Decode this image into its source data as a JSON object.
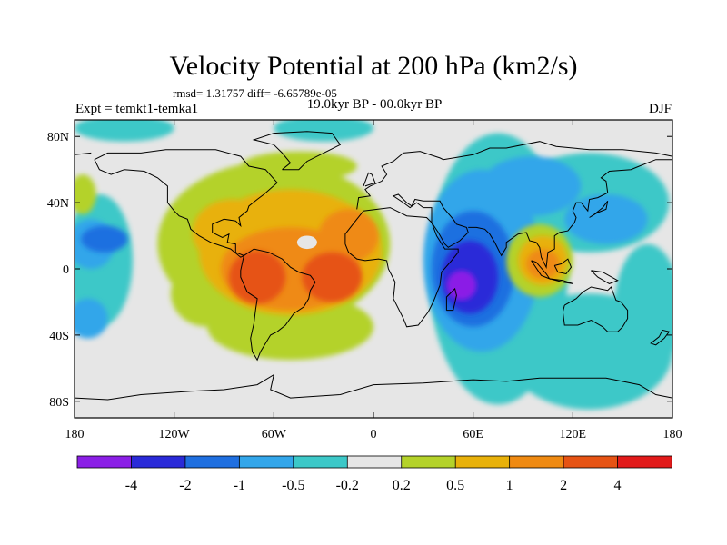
{
  "title": "Velocity Potential at 200 hPa (km2/s)",
  "subtitle_left": "Expt = temkt1-temka1",
  "subtitle_stats": "rmsd= 1.31757 diff= -6.65789e-05",
  "subtitle_center": "19.0kyr BP - 00.0kyr BP",
  "subtitle_right": "DJF",
  "map": {
    "projection": "cylindrical equidistant",
    "lon_range": [
      -180,
      180
    ],
    "lat_range": [
      -90,
      90
    ],
    "lon_ticks": [
      {
        "lon": -180,
        "label": "180"
      },
      {
        "lon": -120,
        "label": "120W"
      },
      {
        "lon": -60,
        "label": "60W"
      },
      {
        "lon": 0,
        "label": "0"
      },
      {
        "lon": 60,
        "label": "60E"
      },
      {
        "lon": 120,
        "label": "120E"
      },
      {
        "lon": 180,
        "label": "180"
      }
    ],
    "lat_ticks": [
      {
        "lat": 80,
        "label": "80N"
      },
      {
        "lat": 40,
        "label": "40N"
      },
      {
        "lat": 0,
        "label": "0"
      },
      {
        "lat": -40,
        "label": "40S"
      },
      {
        "lat": -80,
        "label": "80S"
      }
    ],
    "background_color": "#e6e6e6"
  },
  "colorbar": {
    "colors": [
      "#8b1fe6",
      "#2a2ad8",
      "#1f6fe0",
      "#33a6ea",
      "#3cc8c8",
      "#e6e6e6",
      "#b4d22a",
      "#e8b10a",
      "#ef8a12",
      "#e65314",
      "#e21a1a"
    ],
    "labels": [
      "-4",
      "-2",
      "-1",
      "-0.5",
      "-0.2",
      "0.2",
      "0.5",
      "1",
      "2",
      "4"
    ]
  },
  "fields": [
    {
      "level": "-0.2",
      "color": "#3cc8c8",
      "blobs": [
        {
          "lon": -150,
          "lat": 85,
          "rx": 30,
          "ry": 8
        },
        {
          "lon": -30,
          "lat": 85,
          "rx": 30,
          "ry": 8
        },
        {
          "lon": 75,
          "lat": 0,
          "rx": 42,
          "ry": 82
        },
        {
          "lon": 130,
          "lat": 40,
          "rx": 48,
          "ry": 30
        },
        {
          "lon": 130,
          "lat": -50,
          "rx": 50,
          "ry": 35
        },
        {
          "lon": 165,
          "lat": -25,
          "rx": 20,
          "ry": 40
        },
        {
          "lon": -165,
          "lat": 5,
          "rx": 20,
          "ry": 40
        }
      ]
    },
    {
      "level": "-0.5",
      "color": "#33a6ea",
      "blobs": [
        {
          "lon": 65,
          "lat": 5,
          "rx": 35,
          "ry": 55
        },
        {
          "lon": 95,
          "lat": 50,
          "rx": 30,
          "ry": 18
        },
        {
          "lon": 140,
          "lat": 30,
          "rx": 25,
          "ry": 15
        },
        {
          "lon": -170,
          "lat": 15,
          "rx": 14,
          "ry": 15
        },
        {
          "lon": -172,
          "lat": -30,
          "rx": 12,
          "ry": 12
        }
      ]
    },
    {
      "level": "-1",
      "color": "#1f6fe0",
      "blobs": [
        {
          "lon": 60,
          "lat": 0,
          "rx": 25,
          "ry": 35
        },
        {
          "lon": -162,
          "lat": 18,
          "rx": 14,
          "ry": 8
        }
      ]
    },
    {
      "level": "-2",
      "color": "#2a2ad8",
      "blobs": [
        {
          "lon": 58,
          "lat": -5,
          "rx": 17,
          "ry": 22
        }
      ]
    },
    {
      "level": "-4",
      "color": "#8b1fe6",
      "blobs": [
        {
          "lon": 53,
          "lat": -10,
          "rx": 9,
          "ry": 9
        }
      ]
    },
    {
      "level": "0.2",
      "color": "#b4d22a",
      "blobs": [
        {
          "lon": -60,
          "lat": 15,
          "rx": 70,
          "ry": 50
        },
        {
          "lon": -50,
          "lat": -35,
          "rx": 50,
          "ry": 20
        },
        {
          "lon": -100,
          "lat": -15,
          "rx": 22,
          "ry": 20
        },
        {
          "lon": -45,
          "lat": 62,
          "rx": 35,
          "ry": 9
        },
        {
          "lon": 100,
          "lat": 5,
          "rx": 20,
          "ry": 22
        },
        {
          "lon": -175,
          "lat": 45,
          "rx": 8,
          "ry": 12
        }
      ]
    },
    {
      "level": "0.5",
      "color": "#e8b10a",
      "blobs": [
        {
          "lon": -50,
          "lat": 10,
          "rx": 55,
          "ry": 38
        },
        {
          "lon": -85,
          "lat": 22,
          "rx": 24,
          "ry": 20
        },
        {
          "lon": 102,
          "lat": 5,
          "rx": 15,
          "ry": 15
        }
      ]
    },
    {
      "level": "1",
      "color": "#ef8a12",
      "blobs": [
        {
          "lon": -50,
          "lat": 0,
          "rx": 42,
          "ry": 25
        },
        {
          "lon": -15,
          "lat": 20,
          "rx": 18,
          "ry": 16
        },
        {
          "lon": 102,
          "lat": 3,
          "rx": 10,
          "ry": 9
        }
      ]
    },
    {
      "level": "2",
      "color": "#e65314",
      "blobs": [
        {
          "lon": -70,
          "lat": -5,
          "rx": 17,
          "ry": 16
        },
        {
          "lon": -25,
          "lat": -5,
          "rx": 18,
          "ry": 15
        }
      ]
    }
  ]
}
